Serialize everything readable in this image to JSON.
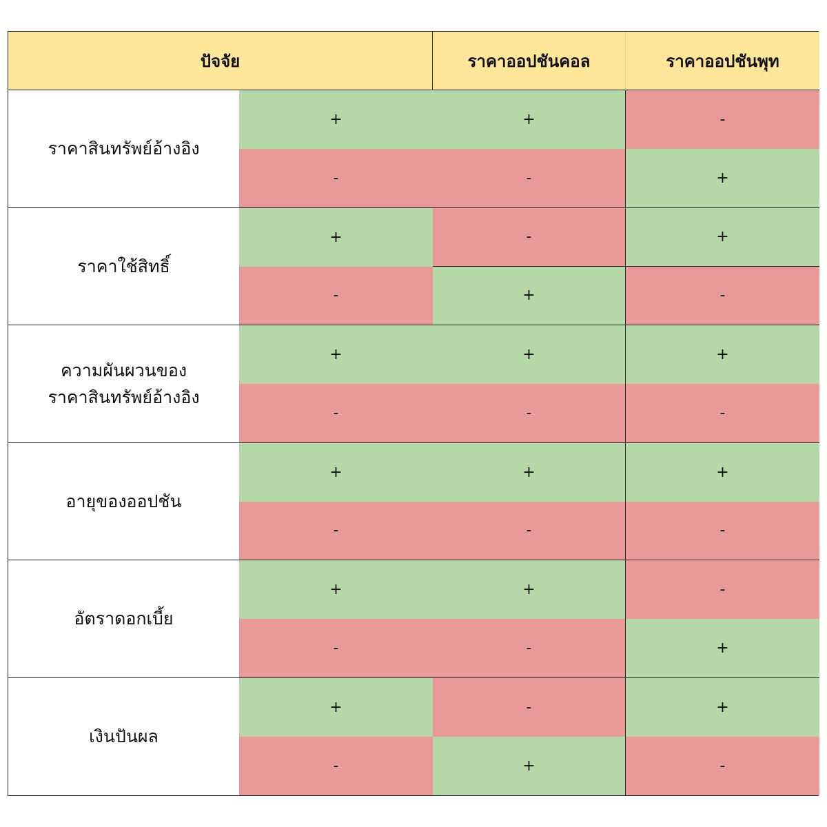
{
  "header": {
    "factor": "ปัจจัย",
    "call": "ราคาออปชันคอล",
    "put": "ราคาออปชันพุท"
  },
  "rows": [
    {
      "factor": "ราคาสินทรัพย์อ้างอิง",
      "up": {
        "indicator": "+",
        "call": "+",
        "put": "-"
      },
      "down": {
        "indicator": "-",
        "call": "-",
        "put": "+"
      }
    },
    {
      "factor": "ราคาใช้สิทธิ์",
      "up": {
        "indicator": "+",
        "call": "-",
        "put": "+"
      },
      "down": {
        "indicator": "-",
        "call": "+",
        "put": "-"
      }
    },
    {
      "factor": "ความผันผวนของ\nราคาสินทรัพย์อ้างอิง",
      "up": {
        "indicator": "+",
        "call": "+",
        "put": "+"
      },
      "down": {
        "indicator": "-",
        "call": "-",
        "put": "-"
      }
    },
    {
      "factor": "อายุของออปชัน",
      "up": {
        "indicator": "+",
        "call": "+",
        "put": "+"
      },
      "down": {
        "indicator": "-",
        "call": "-",
        "put": "-"
      }
    },
    {
      "factor": "อัตราดอกเบี้ย",
      "up": {
        "indicator": "+",
        "call": "+",
        "put": "-"
      },
      "down": {
        "indicator": "-",
        "call": "-",
        "put": "+"
      }
    },
    {
      "factor": "เงินปันผล",
      "up": {
        "indicator": "+",
        "call": "-",
        "put": "+"
      },
      "down": {
        "indicator": "-",
        "call": "+",
        "put": "-"
      }
    }
  ],
  "colors": {
    "header_bg": "#fde59a",
    "positive_bg": "#b6d7a8",
    "negative_bg": "#ea9999"
  }
}
